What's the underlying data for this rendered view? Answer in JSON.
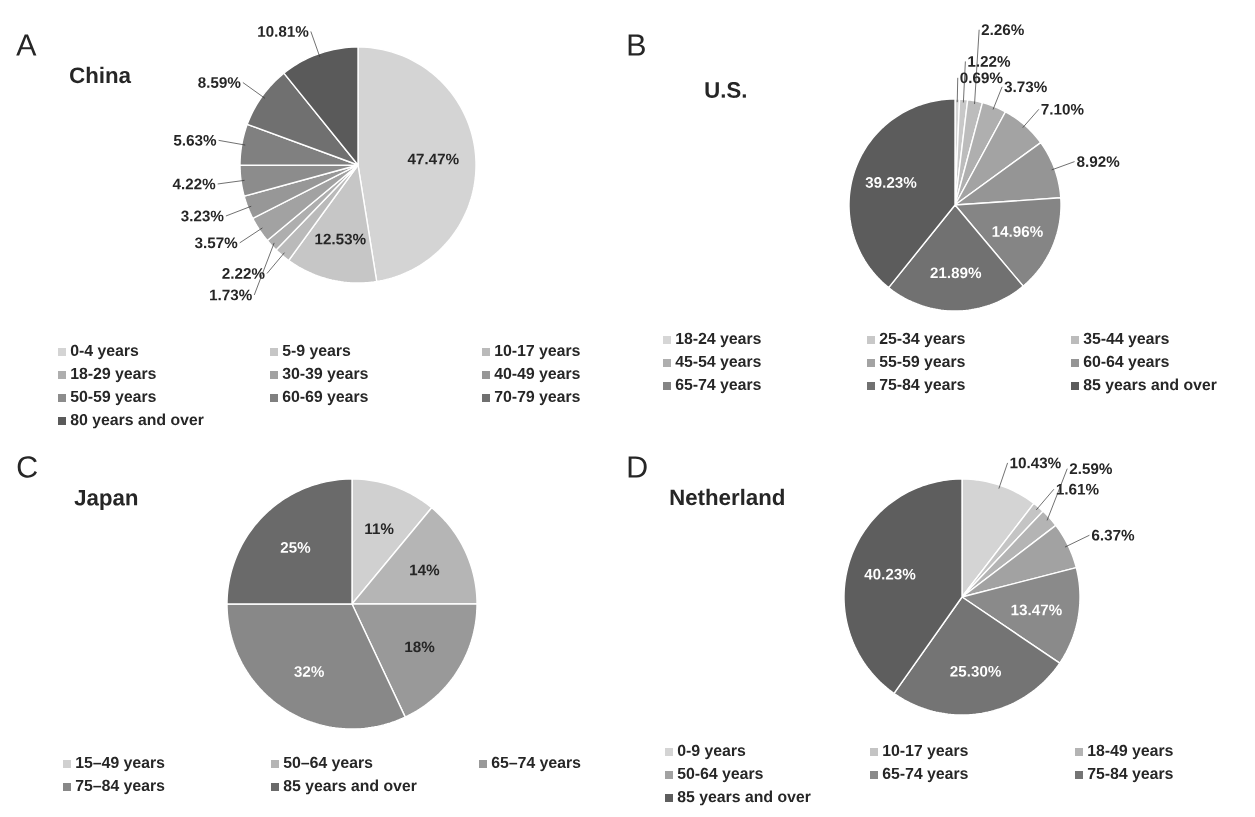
{
  "chart_data": [
    {
      "type": "pie",
      "title": "China",
      "annotations": [
        "A"
      ],
      "legend": "bottom",
      "categories": [
        "0-4 years",
        "5-9 years",
        "10-17 years",
        "18-29 years",
        "30-39 years",
        "40-49 years",
        "50-59 years",
        "60-69 years",
        "70-79 years",
        "80 years and over"
      ],
      "values": [
        47.47,
        12.53,
        2.22,
        1.73,
        3.57,
        3.23,
        4.22,
        5.63,
        8.59,
        10.81
      ],
      "value_labels": [
        "47.47%",
        "12.53%",
        "2.22%",
        "1.73%",
        "3.57%",
        "3.23%",
        "4.22%",
        "5.63%",
        "8.59%",
        "10.81%"
      ],
      "colors": [
        "#d4d4d4",
        "#c6c6c6",
        "#bababa",
        "#aeaeae",
        "#a2a2a2",
        "#979797",
        "#8c8c8c",
        "#808080",
        "#707070",
        "#5a5a5a"
      ]
    },
    {
      "type": "pie",
      "title": "U.S.",
      "annotations": [
        "B"
      ],
      "legend": "bottom",
      "categories": [
        "18-24 years",
        "25-34 years",
        "35-44 years",
        "45-54 years",
        "55-59 years",
        "60-64 years",
        "65-74 years",
        "75-84 years",
        "85 years and over"
      ],
      "values": [
        0.69,
        1.22,
        2.26,
        3.73,
        7.1,
        8.92,
        14.96,
        21.89,
        39.23
      ],
      "value_labels": [
        "0.69%",
        "1.22%",
        "2.26%",
        "3.73%",
        "7.10%",
        "8.92%",
        "14.96%",
        "21.89%",
        "39.23%"
      ],
      "colors": [
        "#d6d6d6",
        "#c8c8c8",
        "#bcbcbc",
        "#afafaf",
        "#a3a3a3",
        "#959595",
        "#858585",
        "#717171",
        "#5c5c5c"
      ]
    },
    {
      "type": "pie",
      "title": "Japan",
      "annotations": [
        "C"
      ],
      "legend": "bottom",
      "categories": [
        "15–49 years",
        "50–64  years",
        "65–74  years",
        "75–84  years",
        "85 years and over"
      ],
      "values": [
        11,
        14,
        18,
        32,
        25
      ],
      "value_labels": [
        "11%",
        "14%",
        "18%",
        "32%",
        "25%"
      ],
      "colors": [
        "#d0d0d0",
        "#b5b5b5",
        "#999999",
        "#888888",
        "#6a6a6a"
      ]
    },
    {
      "type": "pie",
      "title": "Netherland",
      "annotations": [
        "D"
      ],
      "legend": "bottom",
      "categories": [
        "0-9 years",
        "10-17 years",
        "18-49 years",
        "50-64 years",
        "65-74 years",
        "75-84 years",
        "85 years and over"
      ],
      "values": [
        10.43,
        1.61,
        2.59,
        6.37,
        13.47,
        25.3,
        40.23
      ],
      "value_labels": [
        "10.43%",
        "1.61%",
        "2.59%",
        "6.37%",
        "13.47%",
        "25.30%",
        "40.23%"
      ],
      "colors": [
        "#d4d4d4",
        "#c4c4c4",
        "#b4b4b4",
        "#a2a2a2",
        "#8a8a8a",
        "#747474",
        "#5e5e5e"
      ]
    }
  ]
}
